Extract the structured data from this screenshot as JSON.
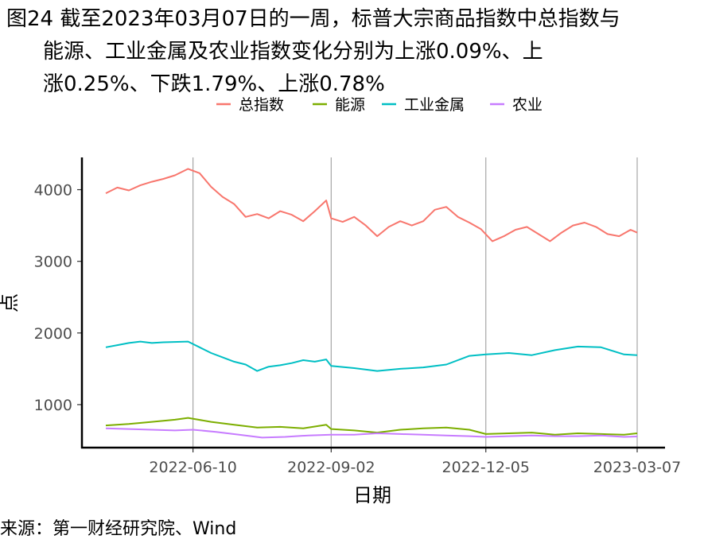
{
  "caption": {
    "line1": "图24  截至2023年03月07日的一周，标普大宗商品指数中总指数与",
    "line2": "能源、工业金属及农业指数变化分别为上涨0.09%、上",
    "line3": "涨0.25%、下跌1.79%、上涨0.78%"
  },
  "source": "来源：第一财经研究院、Wind",
  "chart_data": {
    "type": "line",
    "xlabel": "日期",
    "ylabel": "点",
    "x_range": [
      "2022-04-18",
      "2023-03-07"
    ],
    "ylim": [
      400,
      4450
    ],
    "y_ticks": [
      1000,
      2000,
      3000,
      4000
    ],
    "x_ticks": [
      "2022-06-10",
      "2022-09-02",
      "2022-12-05",
      "2023-03-07"
    ],
    "grid": "vertical lines at x ticks",
    "legend_position": "top",
    "series": [
      {
        "name": "总指数",
        "color": "#F8766D",
        "points": [
          [
            "2022-04-18",
            3950
          ],
          [
            "2022-04-25",
            4030
          ],
          [
            "2022-05-02",
            3990
          ],
          [
            "2022-05-09",
            4060
          ],
          [
            "2022-05-16",
            4110
          ],
          [
            "2022-05-23",
            4150
          ],
          [
            "2022-05-30",
            4200
          ],
          [
            "2022-06-07",
            4290
          ],
          [
            "2022-06-14",
            4230
          ],
          [
            "2022-06-21",
            4040
          ],
          [
            "2022-06-28",
            3900
          ],
          [
            "2022-07-05",
            3800
          ],
          [
            "2022-07-12",
            3620
          ],
          [
            "2022-07-19",
            3660
          ],
          [
            "2022-07-26",
            3600
          ],
          [
            "2022-08-02",
            3700
          ],
          [
            "2022-08-09",
            3650
          ],
          [
            "2022-08-16",
            3560
          ],
          [
            "2022-08-23",
            3700
          ],
          [
            "2022-08-30",
            3850
          ],
          [
            "2022-09-02",
            3600
          ],
          [
            "2022-09-09",
            3550
          ],
          [
            "2022-09-16",
            3620
          ],
          [
            "2022-09-23",
            3500
          ],
          [
            "2022-09-30",
            3350
          ],
          [
            "2022-10-07",
            3480
          ],
          [
            "2022-10-14",
            3560
          ],
          [
            "2022-10-21",
            3500
          ],
          [
            "2022-10-28",
            3560
          ],
          [
            "2022-11-04",
            3720
          ],
          [
            "2022-11-11",
            3760
          ],
          [
            "2022-11-18",
            3620
          ],
          [
            "2022-11-25",
            3540
          ],
          [
            "2022-12-02",
            3450
          ],
          [
            "2022-12-09",
            3280
          ],
          [
            "2022-12-16",
            3350
          ],
          [
            "2022-12-23",
            3440
          ],
          [
            "2022-12-30",
            3480
          ],
          [
            "2023-01-06",
            3380
          ],
          [
            "2023-01-13",
            3280
          ],
          [
            "2023-01-20",
            3400
          ],
          [
            "2023-01-27",
            3500
          ],
          [
            "2023-02-03",
            3540
          ],
          [
            "2023-02-10",
            3480
          ],
          [
            "2023-02-17",
            3380
          ],
          [
            "2023-02-24",
            3350
          ],
          [
            "2023-03-03",
            3440
          ],
          [
            "2023-03-07",
            3400
          ]
        ]
      },
      {
        "name": "能源",
        "color": "#7CAE00",
        "points": [
          [
            "2022-04-18",
            710
          ],
          [
            "2022-05-02",
            730
          ],
          [
            "2022-05-16",
            760
          ],
          [
            "2022-05-30",
            790
          ],
          [
            "2022-06-07",
            815
          ],
          [
            "2022-06-21",
            760
          ],
          [
            "2022-07-05",
            720
          ],
          [
            "2022-07-19",
            680
          ],
          [
            "2022-08-02",
            690
          ],
          [
            "2022-08-16",
            670
          ],
          [
            "2022-08-30",
            720
          ],
          [
            "2022-09-02",
            660
          ],
          [
            "2022-09-16",
            640
          ],
          [
            "2022-09-30",
            610
          ],
          [
            "2022-10-14",
            650
          ],
          [
            "2022-10-28",
            670
          ],
          [
            "2022-11-11",
            680
          ],
          [
            "2022-11-25",
            650
          ],
          [
            "2022-12-05",
            590
          ],
          [
            "2022-12-19",
            600
          ],
          [
            "2023-01-02",
            610
          ],
          [
            "2023-01-16",
            580
          ],
          [
            "2023-01-30",
            600
          ],
          [
            "2023-02-13",
            590
          ],
          [
            "2023-02-27",
            580
          ],
          [
            "2023-03-07",
            600
          ]
        ]
      },
      {
        "name": "工业金属",
        "color": "#00BFC4",
        "points": [
          [
            "2022-04-18",
            1800
          ],
          [
            "2022-04-25",
            1830
          ],
          [
            "2022-05-02",
            1860
          ],
          [
            "2022-05-09",
            1880
          ],
          [
            "2022-05-16",
            1860
          ],
          [
            "2022-05-23",
            1870
          ],
          [
            "2022-06-07",
            1880
          ],
          [
            "2022-06-14",
            1800
          ],
          [
            "2022-06-21",
            1720
          ],
          [
            "2022-06-28",
            1660
          ],
          [
            "2022-07-05",
            1600
          ],
          [
            "2022-07-12",
            1560
          ],
          [
            "2022-07-19",
            1470
          ],
          [
            "2022-07-26",
            1530
          ],
          [
            "2022-08-02",
            1550
          ],
          [
            "2022-08-09",
            1580
          ],
          [
            "2022-08-16",
            1620
          ],
          [
            "2022-08-23",
            1600
          ],
          [
            "2022-08-30",
            1630
          ],
          [
            "2022-09-02",
            1540
          ],
          [
            "2022-09-16",
            1510
          ],
          [
            "2022-09-30",
            1470
          ],
          [
            "2022-10-14",
            1500
          ],
          [
            "2022-10-28",
            1520
          ],
          [
            "2022-11-11",
            1560
          ],
          [
            "2022-11-25",
            1680
          ],
          [
            "2022-12-05",
            1700
          ],
          [
            "2022-12-19",
            1720
          ],
          [
            "2023-01-02",
            1690
          ],
          [
            "2023-01-16",
            1760
          ],
          [
            "2023-01-30",
            1810
          ],
          [
            "2023-02-13",
            1800
          ],
          [
            "2023-02-27",
            1700
          ],
          [
            "2023-03-07",
            1690
          ]
        ]
      },
      {
        "name": "农业",
        "color": "#C77CFF",
        "points": [
          [
            "2022-04-18",
            670
          ],
          [
            "2022-05-02",
            660
          ],
          [
            "2022-05-16",
            650
          ],
          [
            "2022-05-30",
            640
          ],
          [
            "2022-06-10",
            650
          ],
          [
            "2022-06-24",
            620
          ],
          [
            "2022-07-08",
            580
          ],
          [
            "2022-07-22",
            540
          ],
          [
            "2022-08-05",
            550
          ],
          [
            "2022-08-19",
            570
          ],
          [
            "2022-09-02",
            580
          ],
          [
            "2022-09-16",
            580
          ],
          [
            "2022-09-30",
            600
          ],
          [
            "2022-10-14",
            590
          ],
          [
            "2022-10-28",
            580
          ],
          [
            "2022-11-11",
            570
          ],
          [
            "2022-11-25",
            560
          ],
          [
            "2022-12-05",
            550
          ],
          [
            "2022-12-19",
            560
          ],
          [
            "2023-01-02",
            570
          ],
          [
            "2023-01-16",
            560
          ],
          [
            "2023-01-30",
            560
          ],
          [
            "2023-02-13",
            570
          ],
          [
            "2023-02-27",
            550
          ],
          [
            "2023-03-07",
            555
          ]
        ]
      }
    ]
  }
}
